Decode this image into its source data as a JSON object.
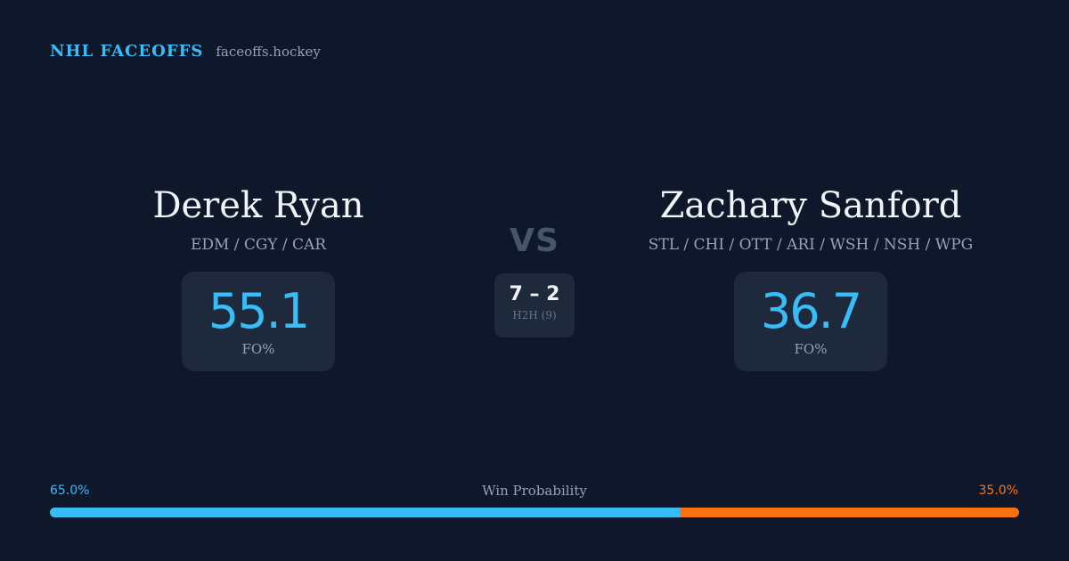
{
  "brand": {
    "name": "NHL FACEOFFS",
    "url": "faceoffs.hockey"
  },
  "player_left": {
    "name": "Derek Ryan",
    "teams": "EDM / CGY / CAR",
    "fo_pct": "55.1",
    "fo_label": "FO%"
  },
  "player_right": {
    "name": "Zachary Sanford",
    "teams": "STL / CHI / OTT / ARI / WSH / NSH / WPG",
    "fo_pct": "36.7",
    "fo_label": "FO%"
  },
  "matchup": {
    "vs_label": "VS",
    "h2h_score": "7 – 2",
    "h2h_label": "H2H (9)"
  },
  "win_probability": {
    "title": "Win Probability",
    "left_label": "65.0%",
    "right_label": "35.0%",
    "left_fraction": 0.65,
    "right_fraction": 0.35
  },
  "colors": {
    "background": "#0f172a",
    "accent_left": "#38bdf8",
    "accent_right": "#f97316",
    "card": "#1e293b"
  }
}
